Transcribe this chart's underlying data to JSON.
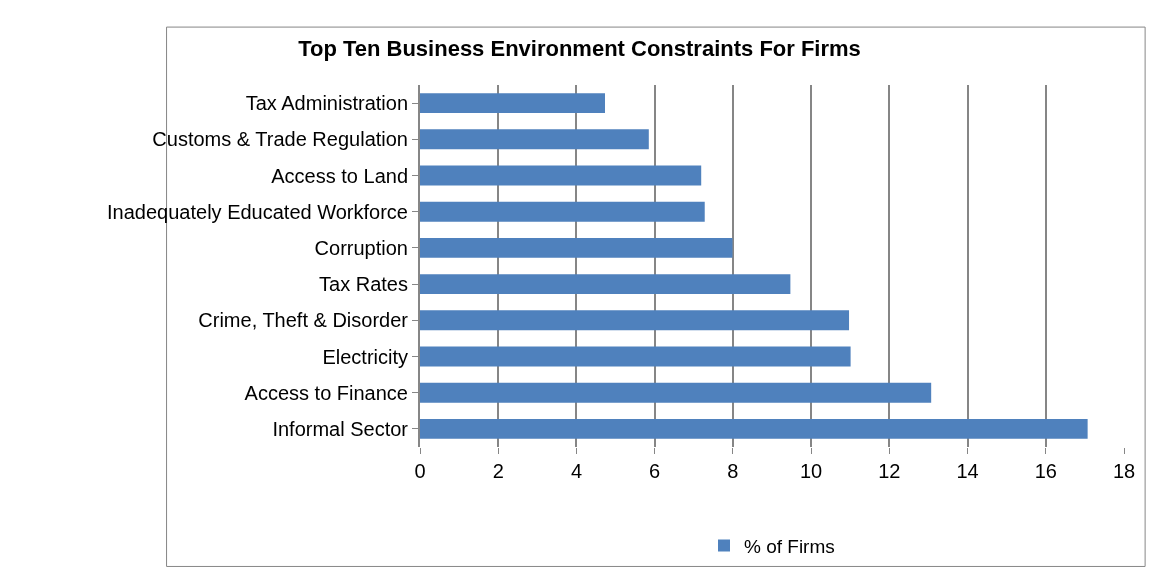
{
  "chart_data": {
    "type": "bar",
    "orientation": "horizontal",
    "title": "Top Ten Business Environment Constraints For Firms",
    "categories": [
      "Tax Administration",
      "Customs & Trade Regulation",
      "Access to Land",
      "Inadequately Educated Workforce",
      "Corruption",
      "Tax Rates",
      "Crime, Theft & Disorder",
      "Electricity",
      "Access to Finance",
      "Informal Sector"
    ],
    "series": [
      {
        "name": "% of Firms",
        "color": "#4f81bd",
        "values": [
          4.73,
          5.85,
          7.19,
          7.28,
          7.99,
          9.47,
          10.97,
          11.01,
          13.07,
          17.07
        ]
      }
    ],
    "xlim": [
      0,
      18
    ],
    "xticks": [
      0,
      2,
      4,
      6,
      8,
      10,
      12,
      14,
      16,
      18
    ],
    "grid": "x",
    "legend": "bottom"
  }
}
